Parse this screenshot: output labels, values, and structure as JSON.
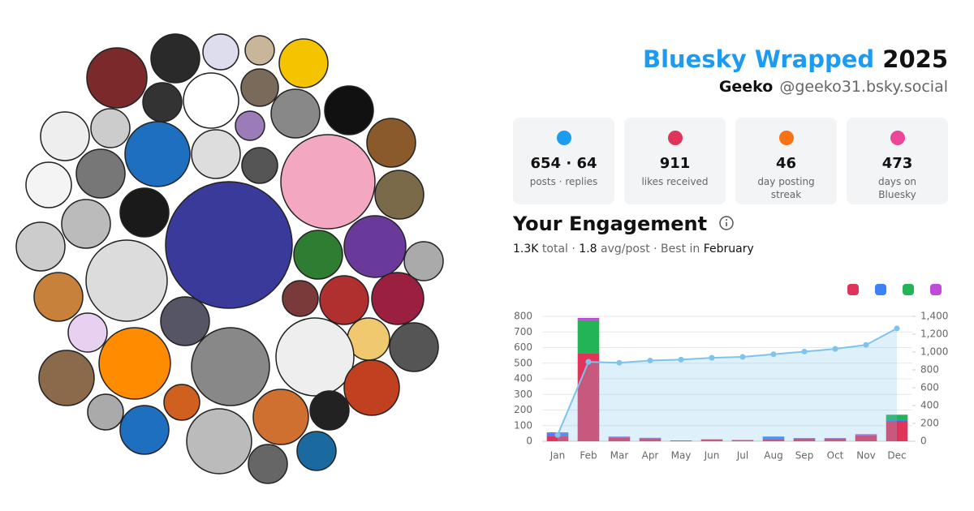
{
  "header": {
    "title": "Bluesky Wrapped",
    "year": "2025",
    "display_name": "Geeko",
    "handle": "@geeko31.bsky.social"
  },
  "stats": [
    {
      "value": "654 · 64",
      "label": "posts · replies",
      "color": "#1d9bf0"
    },
    {
      "value": "911",
      "label": "likes received",
      "color": "#e0345a"
    },
    {
      "value": "46",
      "label": "day posting streak",
      "color": "#f97316"
    },
    {
      "value": "473",
      "label": "days on Bluesky",
      "color": "#ec4899"
    }
  ],
  "engagement": {
    "title": "Your Engagement",
    "summary": [
      {
        "text": "1.3K",
        "strong": true
      },
      {
        "text": " total · ",
        "strong": false
      },
      {
        "text": "1.8",
        "strong": true
      },
      {
        "text": " avg/post · Best in ",
        "strong": false
      },
      {
        "text": "February",
        "strong": true
      }
    ]
  },
  "chart_data": {
    "type": "bar",
    "categories": [
      "Jan",
      "Feb",
      "Mar",
      "Apr",
      "May",
      "Jun",
      "Jul",
      "Aug",
      "Sep",
      "Oct",
      "Nov",
      "Dec"
    ],
    "series": [
      {
        "color": "#e0345a",
        "values": [
          35,
          565,
          25,
          18,
          5,
          12,
          8,
          15,
          18,
          18,
          38,
          130
        ]
      },
      {
        "color": "#3b82f6",
        "values": [
          15,
          0,
          3,
          2,
          0,
          0,
          0,
          15,
          2,
          2,
          0,
          5
        ]
      },
      {
        "color": "#22b455",
        "values": [
          0,
          210,
          0,
          0,
          0,
          0,
          0,
          0,
          0,
          0,
          0,
          35
        ]
      },
      {
        "color": "#c04ad8",
        "values": [
          7,
          15,
          2,
          2,
          0,
          0,
          0,
          0,
          0,
          0,
          7,
          0
        ]
      },
      {
        "type": "line",
        "axis": "y2",
        "color": "#7cc4ec",
        "values": [
          70,
          890,
          880,
          905,
          915,
          935,
          945,
          975,
          1005,
          1035,
          1080,
          1265
        ]
      }
    ],
    "ylim": [
      0,
      800
    ],
    "yticks": [
      0,
      100,
      200,
      300,
      400,
      500,
      600,
      700,
      800
    ],
    "y2lim": [
      0,
      1400
    ],
    "y2ticks": [
      0,
      200,
      400,
      600,
      800,
      {
        "value": 1000,
        "label": "1,000"
      },
      {
        "value": 1200,
        "label": "1,200"
      },
      {
        "value": 1400,
        "label": "1,400"
      }
    ],
    "grid": true
  }
}
